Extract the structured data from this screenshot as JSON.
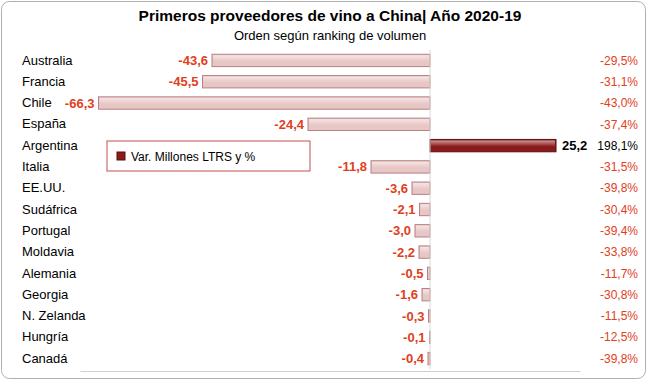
{
  "chart_data": {
    "type": "bar",
    "orientation": "horizontal",
    "title": "Primeros proveedores de vino a China| Año 2020-19",
    "subtitle": "Orden según ranking de volumen",
    "categories": [
      "Australia",
      "Francia",
      "Chile",
      "España",
      "Argentina",
      "Italia",
      "EE.UU.",
      "Sudáfrica",
      "Portugal",
      "Moldavia",
      "Alemania",
      "Georgia",
      "N. Zelanda",
      "Hungría",
      "Canadá"
    ],
    "series": [
      {
        "name": "Var. Millones LTRS y %",
        "color": "#8b1a1a",
        "colors": [
          "#e8c6c6",
          "#e8c6c6",
          "#e8c6c6",
          "#e8c6c6",
          "#8b1a1a",
          "#e8c6c6",
          "#e8c6c6",
          "#e8c6c6",
          "#e8c6c6",
          "#e8c6c6",
          "#e8c6c6",
          "#e8c6c6",
          "#e8c6c6",
          "#e8c6c6",
          "#e8c6c6"
        ],
        "values": [
          -43.6,
          -45.5,
          -66.3,
          -24.4,
          25.2,
          -11.8,
          -3.6,
          -2.1,
          -3.0,
          -2.2,
          -0.5,
          -1.6,
          -0.3,
          -0.1,
          -0.4
        ],
        "value_labels": [
          "-43,6",
          "-45,5",
          "-66,3",
          "-24,4",
          "25,2",
          "-11,8",
          "-3,6",
          "-2,1",
          "-3,0",
          "-2,2",
          "-0,5",
          "-1,6",
          "-0,3",
          "-0,1",
          "-0,4"
        ],
        "pct_values": [
          -29.5,
          -31.1,
          -43.0,
          -37.4,
          198.1,
          -31.5,
          -39.8,
          -30.4,
          -39.4,
          -33.8,
          -11.7,
          -30.8,
          -11.5,
          -12.5,
          -39.8
        ],
        "pct_labels": [
          "-29,5%",
          "-31,1%",
          "-43,0%",
          "-37,4%",
          "198,1%",
          "-31,5%",
          "-39,8%",
          "-30,4%",
          "-39,4%",
          "-33,8%",
          "-11,7%",
          "-30,8%",
          "-11,5%",
          "-12,5%",
          "-39,8%"
        ]
      }
    ],
    "xlim": [
      -70,
      30
    ],
    "xticks": [],
    "data_labels": true,
    "tick_labels": "y",
    "legend": "upper left",
    "grid": false
  }
}
